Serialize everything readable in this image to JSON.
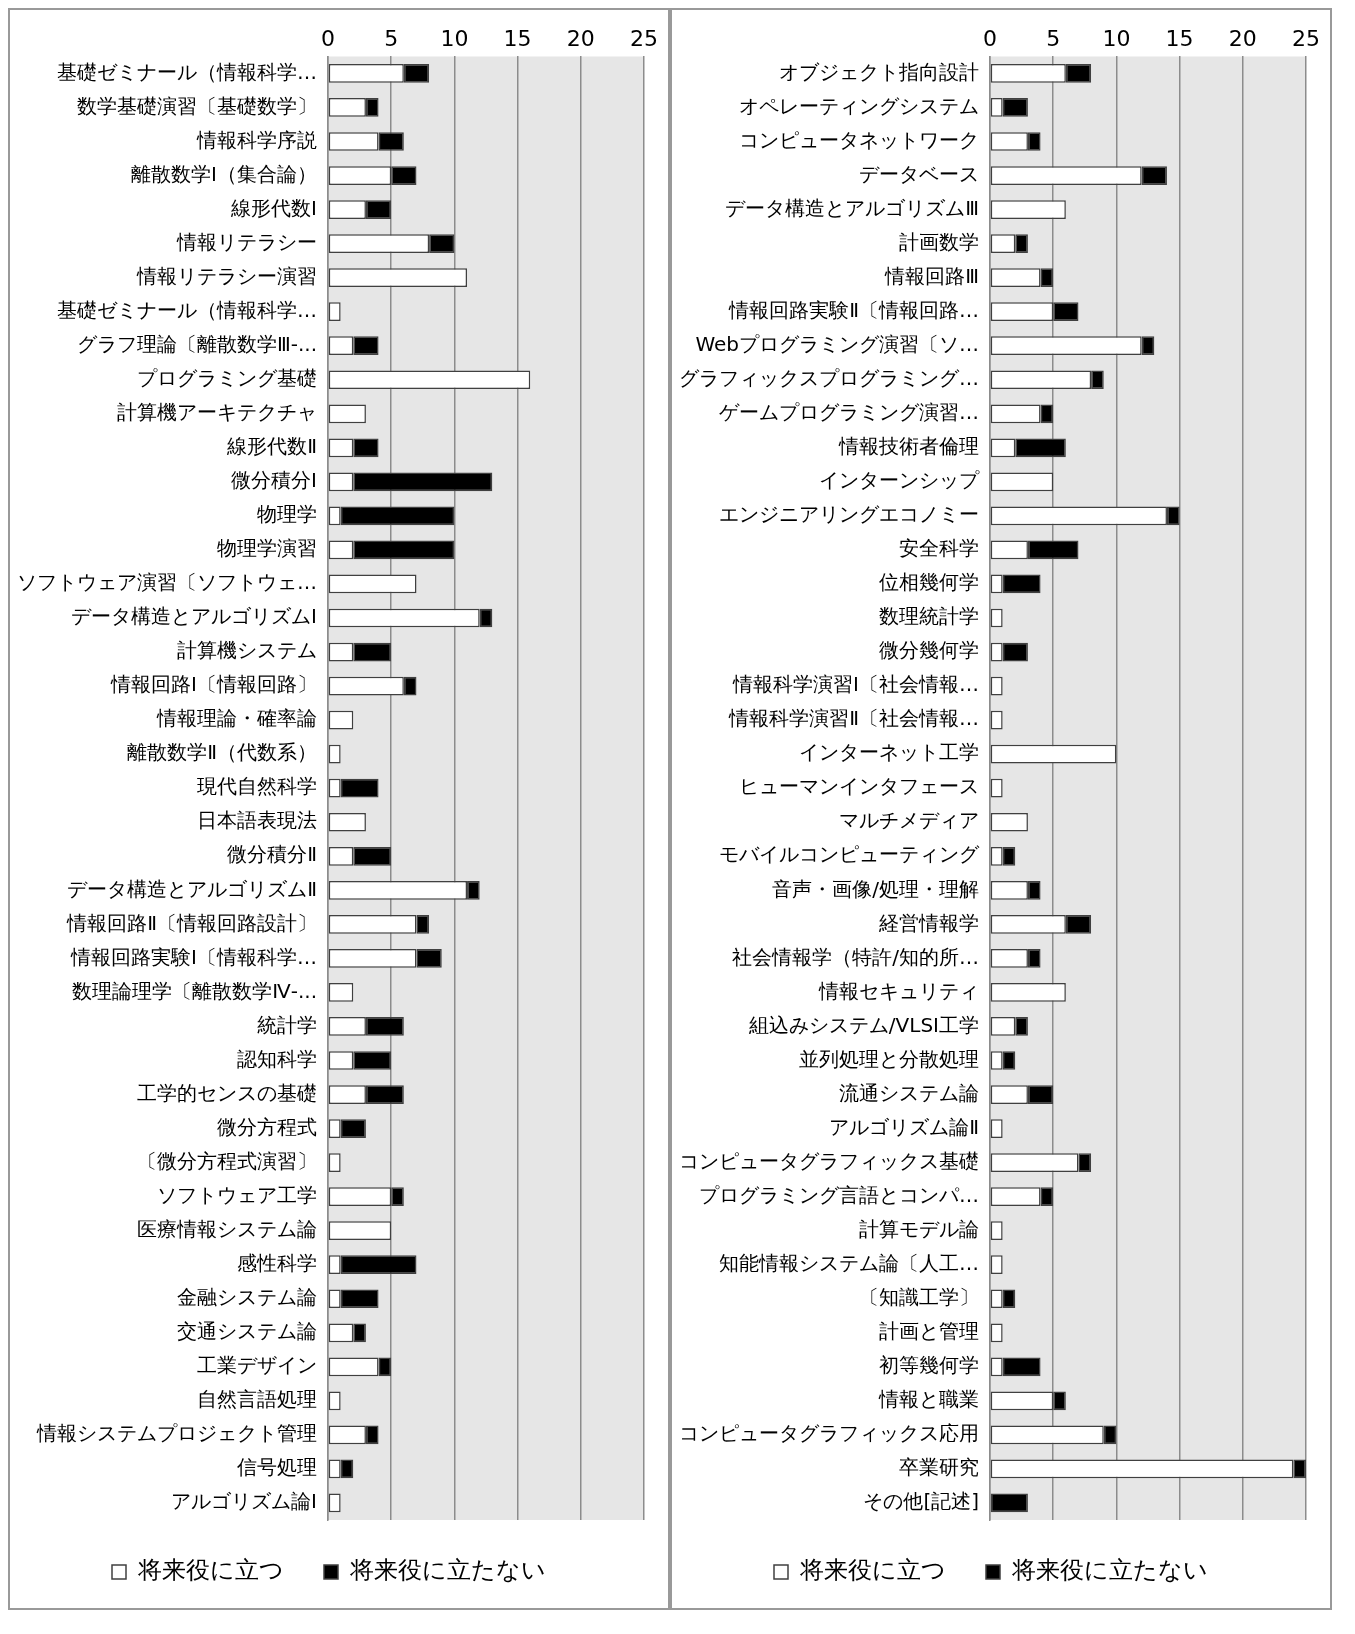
{
  "chart_data": [
    {
      "type": "bar",
      "orientation": "horizontal",
      "stacked": true,
      "categories": [
        "基礎ゼミナール（情報科学…",
        "数学基礎演習〔基礎数学〕",
        "情報科学序説",
        "離散数学Ⅰ（集合論）",
        "線形代数Ⅰ",
        "情報リテラシー",
        "情報リテラシー演習",
        "基礎ゼミナール（情報科学…",
        "グラフ理論〔離散数学Ⅲ-...",
        "プログラミング基礎",
        "計算機アーキテクチャ",
        "線形代数Ⅱ",
        "微分積分Ⅰ",
        "物理学",
        "物理学演習",
        "ソフトウェア演習〔ソフトウェ…",
        "データ構造とアルゴリズムⅠ",
        "計算機システム",
        "情報回路Ⅰ〔情報回路〕",
        "情報理論・確率論",
        "離散数学Ⅱ（代数系）",
        "現代自然科学",
        "日本語表現法",
        "微分積分Ⅱ",
        "データ構造とアルゴリズムⅡ",
        "情報回路Ⅱ〔情報回路設計〕",
        "情報回路実験Ⅰ〔情報科学…",
        "数理論理学〔離散数学Ⅳ-...",
        "統計学",
        "認知科学",
        "工学的センスの基礎",
        "微分方程式",
        "〔微分方程式演習〕",
        "ソフトウェア工学",
        "医療情報システム論",
        "感性科学",
        "金融システム論",
        "交通システム論",
        "工業デザイン",
        "自然言語処理",
        "情報システムプロジェクト管理",
        "信号処理",
        "アルゴリズム論Ⅰ"
      ],
      "series": [
        {
          "name": "将来役に立つ",
          "color": "#ffffff",
          "values": [
            6,
            3,
            4,
            5,
            3,
            8,
            11,
            1,
            2,
            16,
            3,
            2,
            2,
            1,
            2,
            7,
            12,
            2,
            6,
            2,
            1,
            1,
            3,
            2,
            11,
            7,
            7,
            2,
            3,
            2,
            3,
            1,
            1,
            5,
            5,
            1,
            1,
            2,
            4,
            1,
            3,
            1,
            1
          ]
        },
        {
          "name": "将来役に立たない",
          "color": "#000000",
          "values": [
            2,
            1,
            2,
            2,
            2,
            2,
            0,
            0,
            2,
            0,
            0,
            2,
            11,
            9,
            8,
            0,
            1,
            3,
            1,
            0,
            0,
            3,
            0,
            3,
            1,
            1,
            2,
            0,
            3,
            3,
            3,
            2,
            0,
            1,
            0,
            6,
            3,
            1,
            1,
            0,
            1,
            1,
            0
          ]
        }
      ],
      "xlim": [
        0,
        25
      ],
      "xticks": [
        0,
        5,
        10,
        15,
        20,
        25
      ],
      "grid": "x",
      "legend": "bottom"
    },
    {
      "type": "bar",
      "orientation": "horizontal",
      "stacked": true,
      "categories": [
        "オブジェクト指向設計",
        "オペレーティングシステム",
        "コンピュータネットワーク",
        "データベース",
        "データ構造とアルゴリズムⅢ",
        "計画数学",
        "情報回路Ⅲ",
        "情報回路実験Ⅱ〔情報回路…",
        "Webプログラミング演習〔ソ…",
        "グラフィックスプログラミング…",
        "ゲームプログラミング演習…",
        "情報技術者倫理",
        "インターンシップ",
        "エンジニアリングエコノミー",
        "安全科学",
        "位相幾何学",
        "数理統計学",
        "微分幾何学",
        "情報科学演習Ⅰ〔社会情報…",
        "情報科学演習Ⅱ〔社会情報…",
        "インターネット工学",
        "ヒューマンインタフェース",
        "マルチメディア",
        "モバイルコンピューティング",
        "音声・画像/処理・理解",
        "経営情報学",
        "社会情報学（特許/知的所…",
        "情報セキュリティ",
        "組込みシステム/VLSI工学",
        "並列処理と分散処理",
        "流通システム論",
        "アルゴリズム論Ⅱ",
        "コンピュータグラフィックス基礎",
        "プログラミング言語とコンパ…",
        "計算モデル論",
        "知能情報システム論〔人工…",
        "〔知識工学〕",
        "計画と管理",
        "初等幾何学",
        "情報と職業",
        "コンピュータグラフィックス応用",
        "卒業研究",
        "その他[記述]"
      ],
      "series": [
        {
          "name": "将来役に立つ",
          "color": "#ffffff",
          "values": [
            6,
            1,
            3,
            12,
            6,
            2,
            4,
            5,
            12,
            8,
            4,
            2,
            5,
            14,
            3,
            1,
            1,
            1,
            1,
            1,
            10,
            1,
            3,
            1,
            3,
            6,
            3,
            6,
            2,
            1,
            3,
            1,
            7,
            4,
            1,
            1,
            1,
            1,
            1,
            5,
            9,
            24,
            0
          ]
        },
        {
          "name": "将来役に立たない",
          "color": "#000000",
          "values": [
            2,
            2,
            1,
            2,
            0,
            1,
            1,
            2,
            1,
            1,
            1,
            4,
            0,
            1,
            4,
            3,
            0,
            2,
            0,
            0,
            0,
            0,
            0,
            1,
            1,
            2,
            1,
            0,
            1,
            1,
            2,
            0,
            1,
            1,
            0,
            0,
            1,
            0,
            3,
            1,
            1,
            1,
            3
          ]
        }
      ],
      "xlim": [
        0,
        25
      ],
      "xticks": [
        0,
        5,
        10,
        15,
        20,
        25
      ],
      "grid": "x",
      "legend": "bottom"
    }
  ]
}
